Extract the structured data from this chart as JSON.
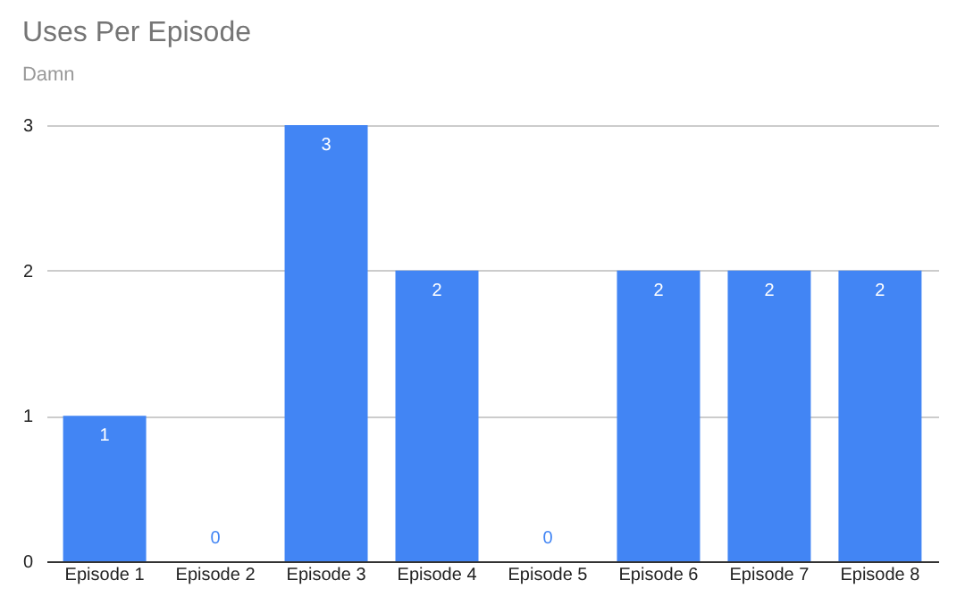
{
  "chart_data": {
    "type": "bar",
    "title": "Uses Per Episode",
    "subtitle": "Damn",
    "categories": [
      "Episode 1",
      "Episode 2",
      "Episode 3",
      "Episode 4",
      "Episode 5",
      "Episode 6",
      "Episode 7",
      "Episode 8"
    ],
    "values": [
      1,
      0,
      3,
      2,
      0,
      2,
      2,
      2
    ],
    "color": "#4285f4",
    "ylim": [
      0,
      3
    ],
    "yticks": [
      0,
      1,
      2,
      3
    ],
    "grid": "y",
    "data_labels": true
  }
}
